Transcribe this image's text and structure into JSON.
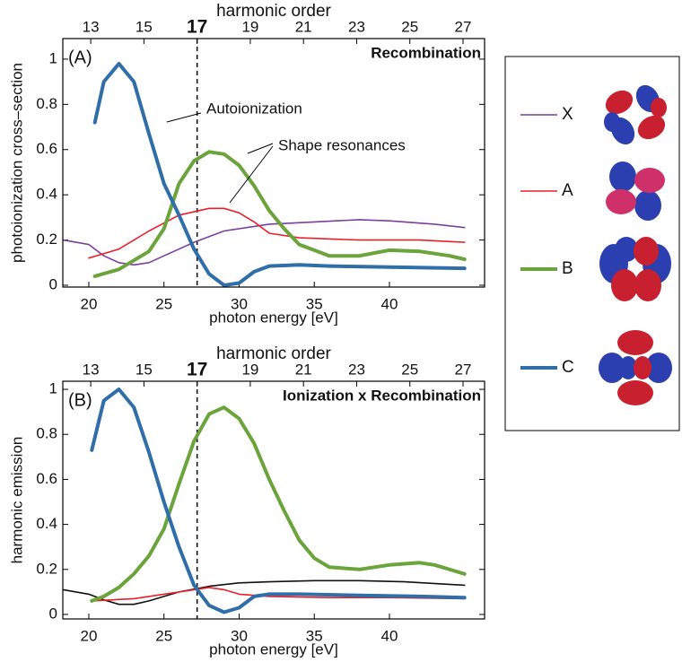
{
  "chart_data": [
    {
      "type": "line",
      "panel_label": "(A)",
      "corner_title": "Recombination",
      "x_label": "photon energy [eV]",
      "y_label": "photoionization cross–section",
      "x2_label": "harmonic order",
      "xlim": [
        18.27,
        46.33
      ],
      "xticks": [
        20,
        25,
        30,
        35,
        40
      ],
      "x2lim": [
        11.95,
        27.81
      ],
      "x2ticks": [
        13,
        15,
        17,
        19,
        21,
        23,
        25,
        27
      ],
      "x2_highlight": 17,
      "ylim": [
        -0.008,
        1.091
      ],
      "yticks": [
        0,
        0.2,
        0.4,
        0.6,
        0.8,
        1
      ],
      "annotations": [
        "Autoionization",
        "Shape resonances"
      ],
      "series": [
        {
          "name": "X",
          "color": "#7b3fa0",
          "linewidth": 1.6,
          "x": [
            18.3,
            20,
            21,
            22,
            23,
            24,
            25,
            27,
            29,
            32,
            35,
            38,
            40,
            43,
            45
          ],
          "values": [
            0.2,
            0.18,
            0.13,
            0.1,
            0.09,
            0.1,
            0.13,
            0.19,
            0.24,
            0.27,
            0.28,
            0.29,
            0.285,
            0.27,
            0.255
          ]
        },
        {
          "name": "A",
          "color": "#e8202a",
          "linewidth": 1.6,
          "x": [
            20,
            22,
            24,
            26,
            28,
            29,
            30,
            31,
            32,
            34,
            38,
            42,
            45
          ],
          "values": [
            0.12,
            0.16,
            0.24,
            0.31,
            0.34,
            0.34,
            0.32,
            0.28,
            0.23,
            0.21,
            0.2,
            0.2,
            0.19
          ]
        },
        {
          "name": "B",
          "color": "#6aa43a",
          "linewidth": 4,
          "x": [
            20.4,
            22,
            24,
            25,
            26,
            27,
            28,
            29,
            30,
            31,
            32,
            33,
            34,
            36,
            38,
            40,
            42,
            44,
            45
          ],
          "values": [
            0.04,
            0.07,
            0.15,
            0.25,
            0.45,
            0.55,
            0.59,
            0.58,
            0.53,
            0.44,
            0.33,
            0.25,
            0.18,
            0.13,
            0.13,
            0.155,
            0.15,
            0.13,
            0.115
          ]
        },
        {
          "name": "C",
          "color": "#2f6ea8",
          "linewidth": 4,
          "x": [
            20.4,
            21,
            22,
            23,
            24,
            25,
            26,
            27,
            28,
            29,
            30,
            31,
            32,
            34,
            36,
            40,
            45
          ],
          "values": [
            0.72,
            0.9,
            0.98,
            0.9,
            0.67,
            0.45,
            0.31,
            0.16,
            0.05,
            0.0,
            0.01,
            0.06,
            0.085,
            0.09,
            0.085,
            0.08,
            0.075
          ]
        }
      ]
    },
    {
      "type": "line",
      "panel_label": "(B)",
      "corner_title": "Ionization x Recombination",
      "x_label": "photon energy [eV]",
      "y_label": "harmonic emission",
      "x2_label": "harmonic order",
      "xlim": [
        18.27,
        46.33
      ],
      "xticks": [
        20,
        25,
        30,
        35,
        40
      ],
      "x2lim": [
        11.95,
        27.81
      ],
      "x2ticks": [
        13,
        15,
        17,
        19,
        21,
        23,
        25,
        27
      ],
      "x2_highlight": 17,
      "ylim": [
        -0.02,
        1.036
      ],
      "yticks": [
        0,
        0.2,
        0.4,
        0.6,
        0.8,
        1
      ],
      "series": [
        {
          "color": "#111111",
          "linewidth": 1.6,
          "x": [
            18.3,
            20,
            21,
            22,
            23,
            24,
            26,
            28,
            30,
            32,
            35,
            38,
            41,
            45
          ],
          "values": [
            0.11,
            0.09,
            0.065,
            0.045,
            0.045,
            0.06,
            0.1,
            0.125,
            0.14,
            0.145,
            0.15,
            0.15,
            0.145,
            0.13
          ]
        },
        {
          "color": "#e8202a",
          "linewidth": 1.6,
          "x": [
            20.2,
            23,
            25,
            27,
            28,
            29,
            30,
            32,
            36,
            40,
            45
          ],
          "values": [
            0.06,
            0.07,
            0.09,
            0.11,
            0.12,
            0.11,
            0.09,
            0.08,
            0.075,
            0.075,
            0.07
          ]
        },
        {
          "color": "#6aa43a",
          "linewidth": 4,
          "x": [
            20.2,
            21,
            22,
            23,
            24,
            25,
            26,
            27,
            28,
            29,
            30,
            31,
            32,
            33,
            34,
            35,
            36,
            38,
            40,
            42,
            43,
            45
          ],
          "values": [
            0.06,
            0.08,
            0.12,
            0.18,
            0.26,
            0.38,
            0.58,
            0.77,
            0.89,
            0.92,
            0.87,
            0.76,
            0.6,
            0.46,
            0.33,
            0.25,
            0.21,
            0.2,
            0.22,
            0.23,
            0.22,
            0.18
          ]
        },
        {
          "color": "#2f6ea8",
          "linewidth": 4,
          "x": [
            20.2,
            21,
            22,
            23,
            24,
            25,
            26,
            27,
            28,
            29,
            30,
            31,
            32,
            34,
            38,
            42,
            45
          ],
          "values": [
            0.73,
            0.95,
            1.0,
            0.92,
            0.72,
            0.5,
            0.3,
            0.13,
            0.04,
            0.01,
            0.03,
            0.08,
            0.09,
            0.09,
            0.085,
            0.08,
            0.075
          ]
        }
      ]
    }
  ]
}
